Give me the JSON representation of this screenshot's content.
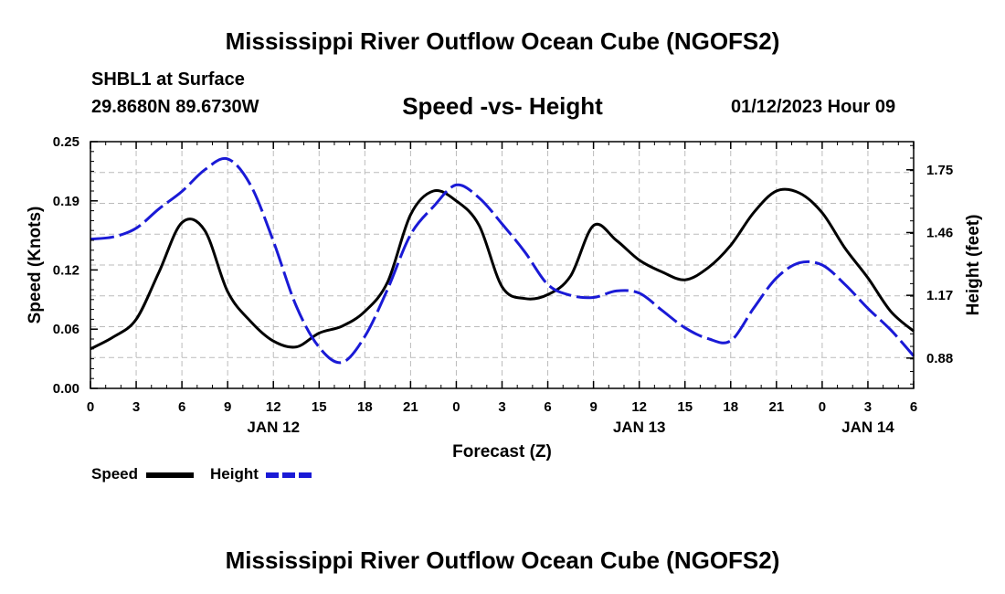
{
  "header": {
    "title": "Mississippi River Outflow Ocean Cube (NGOFS2)",
    "station": "SHBL1 at Surface",
    "coords": "29.8680N  89.6730W",
    "subtitle": "Speed -vs- Height",
    "datetime": "01/12/2023 Hour 09"
  },
  "footer": {
    "title": "Mississippi River Outflow Ocean Cube (NGOFS2)"
  },
  "legend": {
    "speed": "Speed",
    "height": "Height"
  },
  "colors": {
    "speed": "#000000",
    "height": "#1a1ad6",
    "grid": "#bbbbbb"
  },
  "chart_data": {
    "type": "line",
    "title": "Speed -vs- Height",
    "xlabel": "Forecast (Z)",
    "ylabel_left": "Speed (Knots)",
    "ylabel_right": "Height (feet)",
    "xlim": [
      0,
      54
    ],
    "ylim_left": [
      0,
      0.25
    ],
    "ylim_right": [
      0.74,
      1.88
    ],
    "x_ticks": [
      0,
      3,
      6,
      9,
      12,
      15,
      18,
      21,
      24,
      27,
      30,
      33,
      36,
      39,
      42,
      45,
      48,
      51,
      54
    ],
    "x_tick_labels": [
      "0",
      "3",
      "6",
      "9",
      "12",
      "15",
      "18",
      "21",
      "0",
      "3",
      "6",
      "9",
      "12",
      "15",
      "18",
      "21",
      "0",
      "3",
      "6"
    ],
    "date_labels": [
      {
        "x": 12,
        "label": "JAN 12"
      },
      {
        "x": 36,
        "label": "JAN 13"
      },
      {
        "x": 51,
        "label": "JAN 14"
      }
    ],
    "left_ticks": [
      0.0,
      0.06,
      0.12,
      0.19,
      0.25
    ],
    "left_tick_labels": [
      "0.00",
      "0.06",
      "0.12",
      "0.19",
      "0.25"
    ],
    "right_ticks": [
      0.88,
      1.17,
      1.46,
      1.75
    ],
    "right_tick_labels": [
      "0.88",
      "1.17",
      "1.46",
      "1.75"
    ],
    "grid": true,
    "series": [
      {
        "name": "Speed",
        "axis": "left",
        "style": "solid",
        "x": [
          0,
          1.5,
          3,
          4.5,
          6,
          7.5,
          9,
          10.5,
          12,
          13.5,
          15,
          16.5,
          18,
          19.5,
          21,
          22.5,
          24,
          25.5,
          27,
          28.5,
          30,
          31.5,
          33,
          34.5,
          36,
          37.5,
          39,
          40.5,
          42,
          43.5,
          45,
          46.5,
          48,
          49.5,
          51,
          52.5,
          54
        ],
        "values": [
          0.04,
          0.052,
          0.07,
          0.118,
          0.168,
          0.16,
          0.098,
          0.068,
          0.048,
          0.042,
          0.056,
          0.063,
          0.078,
          0.108,
          0.176,
          0.2,
          0.19,
          0.165,
          0.103,
          0.091,
          0.095,
          0.114,
          0.165,
          0.15,
          0.13,
          0.118,
          0.11,
          0.122,
          0.145,
          0.178,
          0.2,
          0.198,
          0.178,
          0.142,
          0.112,
          0.078,
          0.058
        ]
      },
      {
        "name": "Height",
        "axis": "right",
        "style": "dash",
        "x": [
          0,
          1.5,
          3,
          4.5,
          6,
          7.5,
          9,
          10.5,
          12,
          13.5,
          15,
          16.5,
          18,
          19.5,
          21,
          22.5,
          24,
          25.5,
          27,
          28.5,
          30,
          31.5,
          33,
          34.5,
          36,
          37.5,
          39,
          40.5,
          42,
          43.5,
          45,
          46.5,
          48,
          49.5,
          51,
          52.5,
          54
        ],
        "values": [
          1.43,
          1.44,
          1.48,
          1.57,
          1.65,
          1.75,
          1.8,
          1.68,
          1.42,
          1.12,
          0.93,
          0.86,
          0.98,
          1.2,
          1.45,
          1.58,
          1.68,
          1.62,
          1.5,
          1.37,
          1.22,
          1.17,
          1.16,
          1.19,
          1.18,
          1.1,
          1.02,
          0.97,
          0.96,
          1.11,
          1.25,
          1.32,
          1.31,
          1.22,
          1.11,
          1.01,
          0.89
        ]
      }
    ]
  }
}
